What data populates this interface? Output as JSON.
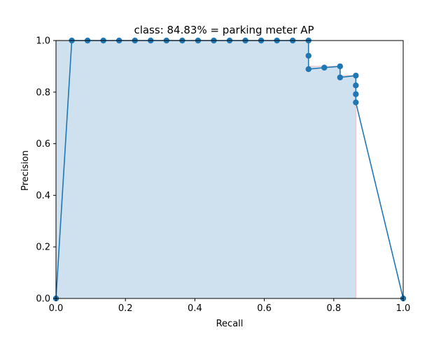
{
  "chart_data": {
    "type": "line",
    "title": "class: 84.83% = parking meter AP",
    "xlabel": "Recall",
    "ylabel": "Precision",
    "xlim": [
      0.0,
      1.0
    ],
    "ylim": [
      0.0,
      1.0
    ],
    "xticks": [
      "0.0",
      "0.2",
      "0.4",
      "0.6",
      "0.8",
      "1.0"
    ],
    "yticks": [
      "0.0",
      "0.2",
      "0.4",
      "0.6",
      "0.8",
      "1.0"
    ],
    "grid": false,
    "colors": {
      "line": "#1f77b4",
      "fill": "#cfe1ef",
      "envelope": "#f2c6c6"
    },
    "series": [
      {
        "x": [
          0.0,
          0.0455,
          0.0909,
          0.1364,
          0.1818,
          0.2273,
          0.2727,
          0.3182,
          0.3636,
          0.4091,
          0.4545,
          0.5,
          0.5455,
          0.5909,
          0.6364,
          0.6818,
          0.7273,
          0.7273,
          0.7273,
          0.7727,
          0.8182,
          0.8182,
          0.8636,
          0.8636,
          0.8636,
          0.8636,
          1.0
        ],
        "y": [
          0.0,
          1.0,
          1.0,
          1.0,
          1.0,
          1.0,
          1.0,
          1.0,
          1.0,
          1.0,
          1.0,
          1.0,
          1.0,
          1.0,
          1.0,
          1.0,
          1.0,
          0.941,
          0.889,
          0.895,
          0.9,
          0.857,
          0.864,
          0.826,
          0.792,
          0.76,
          0.0
        ]
      }
    ],
    "area": {
      "x": [
        0.0,
        0.7273,
        0.7273,
        0.8182,
        0.8182,
        0.8636,
        0.8636
      ],
      "y": [
        1.0,
        1.0,
        0.9,
        0.9,
        0.864,
        0.864,
        0.0
      ]
    }
  }
}
